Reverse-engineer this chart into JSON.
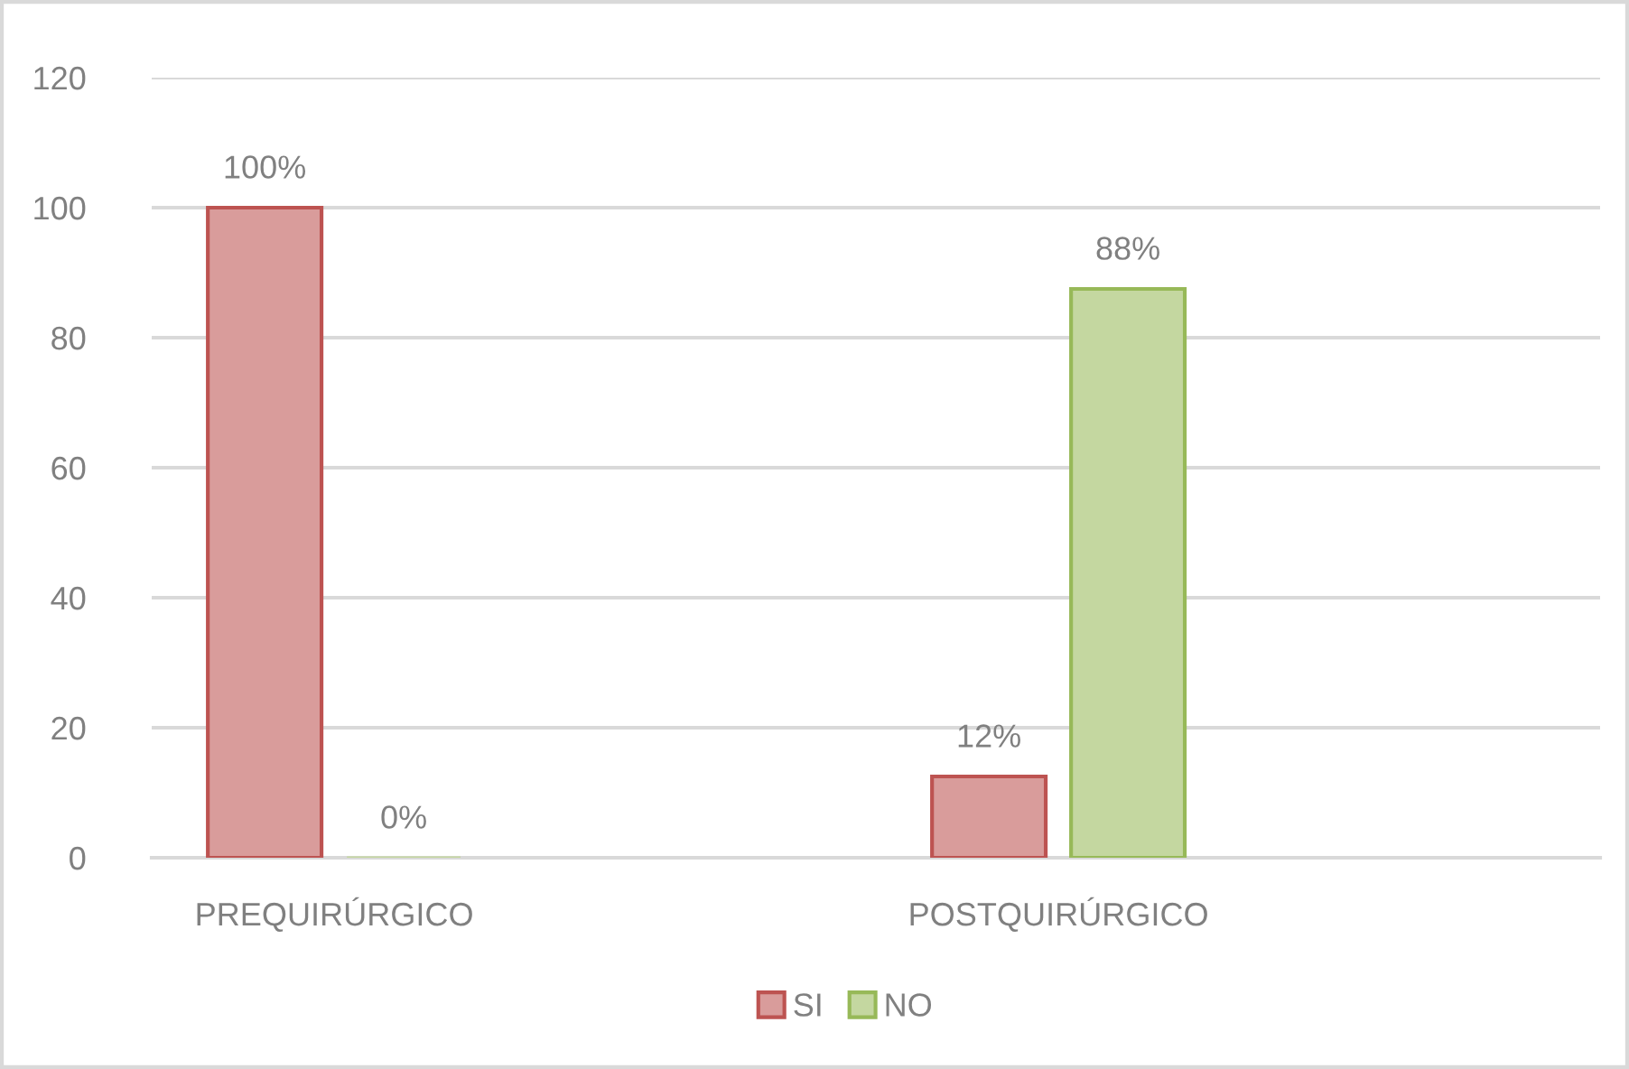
{
  "chart_data": {
    "type": "bar",
    "categories": [
      "PREQUIRÚRGICO",
      "POSTQUIRÚRGICO"
    ],
    "series": [
      {
        "name": "SI",
        "color": "#d99c9b",
        "values": [
          100,
          12.5
        ],
        "value_labels": [
          "100%",
          "12%"
        ]
      },
      {
        "name": "NO",
        "color": "#c4d7a0",
        "values": [
          0,
          87.5
        ],
        "value_labels": [
          "0%",
          "88%"
        ]
      }
    ],
    "ylim": [
      0,
      120
    ],
    "yticks": [
      0,
      20,
      40,
      60,
      80,
      100,
      120
    ],
    "grid": "y",
    "legend": "bottom"
  }
}
